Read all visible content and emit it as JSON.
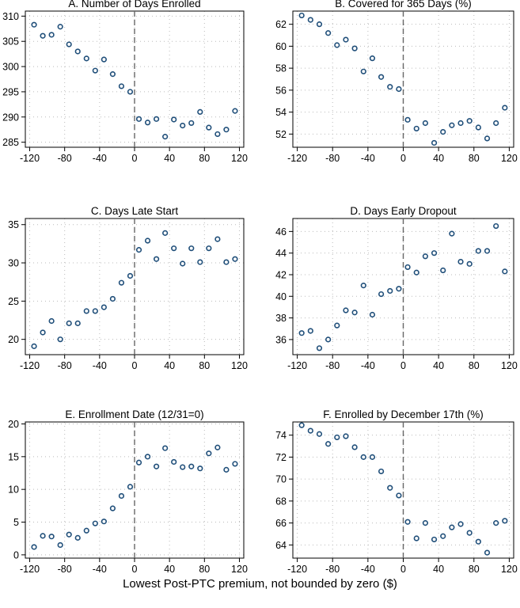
{
  "xlabel": "Lowest Post-PTC premium, not bounded by zero ($)",
  "style": {
    "marker_color": "#1f4e79",
    "cutoff_line_color": "#666666",
    "grid_color": "#bbbbbb"
  },
  "chart_data": [
    {
      "type": "scatter",
      "title": "A. Number of Days Enrolled",
      "xlim": [
        -125,
        125
      ],
      "ylim": [
        284,
        311
      ],
      "xticks": [
        -120,
        -80,
        -40,
        0,
        40,
        80,
        120
      ],
      "yticks": [
        285,
        290,
        295,
        300,
        305,
        310
      ],
      "cutoff": 0,
      "grid": true,
      "x": [
        -115,
        -105,
        -95,
        -85,
        -75,
        -65,
        -55,
        -45,
        -35,
        -25,
        -15,
        -5,
        5,
        15,
        25,
        35,
        45,
        55,
        65,
        75,
        85,
        95,
        105,
        115
      ],
      "y": [
        308.3,
        306.1,
        306.3,
        307.9,
        304.4,
        303.0,
        301.6,
        299.2,
        301.4,
        298.5,
        296.1,
        295.0,
        289.6,
        288.9,
        289.6,
        286.1,
        289.5,
        288.3,
        288.8,
        291.0,
        287.9,
        286.6,
        287.5,
        291.2
      ]
    },
    {
      "type": "scatter",
      "title": "B. Covered for 365 Days (%)",
      "xlim": [
        -125,
        125
      ],
      "ylim": [
        50.8,
        63.2
      ],
      "xticks": [
        -120,
        -80,
        -40,
        0,
        40,
        80,
        120
      ],
      "yticks": [
        52,
        54,
        56,
        58,
        60,
        62
      ],
      "cutoff": 0,
      "grid": true,
      "x": [
        -115,
        -105,
        -95,
        -85,
        -75,
        -65,
        -55,
        -45,
        -35,
        -25,
        -15,
        -5,
        5,
        15,
        25,
        35,
        45,
        55,
        65,
        75,
        85,
        95,
        105,
        115
      ],
      "y": [
        62.8,
        62.4,
        62.0,
        61.2,
        60.1,
        60.6,
        59.8,
        57.7,
        58.9,
        57.2,
        56.3,
        56.1,
        53.3,
        52.5,
        53.0,
        51.2,
        52.2,
        52.8,
        53.0,
        53.2,
        52.6,
        51.6,
        53.0,
        54.4
      ]
    },
    {
      "type": "scatter",
      "title": "C. Days Late Start",
      "xlim": [
        -125,
        125
      ],
      "ylim": [
        18,
        35.8
      ],
      "xticks": [
        -120,
        -80,
        -40,
        0,
        40,
        80,
        120
      ],
      "yticks": [
        20,
        25,
        30,
        35
      ],
      "cutoff": 0,
      "grid": true,
      "x": [
        -115,
        -105,
        -95,
        -85,
        -75,
        -65,
        -55,
        -45,
        -35,
        -25,
        -15,
        -5,
        5,
        15,
        25,
        35,
        45,
        55,
        65,
        75,
        85,
        95,
        105,
        115
      ],
      "y": [
        19.1,
        20.9,
        22.4,
        20.0,
        22.1,
        22.1,
        23.7,
        23.7,
        24.2,
        25.3,
        27.4,
        28.3,
        31.7,
        32.9,
        30.5,
        33.9,
        31.9,
        29.9,
        31.9,
        30.1,
        31.9,
        33.1,
        30.1,
        30.5
      ]
    },
    {
      "type": "scatter",
      "title": "D. Days Early Dropout",
      "xlim": [
        -125,
        125
      ],
      "ylim": [
        34.6,
        47.2
      ],
      "xticks": [
        -120,
        -80,
        -40,
        0,
        40,
        80,
        120
      ],
      "yticks": [
        36,
        38,
        40,
        42,
        44,
        46
      ],
      "cutoff": 0,
      "grid": true,
      "x": [
        -115,
        -105,
        -95,
        -85,
        -75,
        -65,
        -55,
        -45,
        -35,
        -25,
        -15,
        -5,
        5,
        15,
        25,
        35,
        45,
        55,
        65,
        75,
        85,
        95,
        105,
        115
      ],
      "y": [
        36.6,
        36.8,
        35.2,
        36.0,
        37.3,
        38.7,
        38.5,
        41.0,
        38.3,
        40.2,
        40.5,
        40.7,
        42.7,
        42.2,
        43.7,
        44.0,
        42.4,
        45.8,
        43.2,
        43.0,
        44.2,
        44.2,
        46.5,
        42.3
      ]
    },
    {
      "type": "scatter",
      "title": "E. Enrollment Date (12/31=0)",
      "xlim": [
        -125,
        125
      ],
      "ylim": [
        -0.5,
        20.3
      ],
      "xticks": [
        -120,
        -80,
        -40,
        0,
        40,
        80,
        120
      ],
      "yticks": [
        0,
        5,
        10,
        15,
        20
      ],
      "cutoff": 0,
      "grid": true,
      "x": [
        -115,
        -105,
        -95,
        -85,
        -75,
        -65,
        -55,
        -45,
        -35,
        -25,
        -15,
        -5,
        5,
        15,
        25,
        35,
        45,
        55,
        65,
        75,
        85,
        95,
        105,
        115
      ],
      "y": [
        1.2,
        2.9,
        2.8,
        1.5,
        3.1,
        2.6,
        3.7,
        4.8,
        5.1,
        7.1,
        9.0,
        10.4,
        14.1,
        15.0,
        13.5,
        16.3,
        14.2,
        13.4,
        13.5,
        13.2,
        15.5,
        16.4,
        13.0,
        13.9
      ]
    },
    {
      "type": "scatter",
      "title": "F. Enrolled by December 17th (%)",
      "xlim": [
        -125,
        125
      ],
      "ylim": [
        62.8,
        75.2
      ],
      "xticks": [
        -120,
        -80,
        -40,
        0,
        40,
        80,
        120
      ],
      "yticks": [
        64,
        66,
        68,
        70,
        72,
        74
      ],
      "cutoff": 0,
      "grid": true,
      "x": [
        -115,
        -105,
        -95,
        -85,
        -75,
        -65,
        -55,
        -45,
        -35,
        -25,
        -15,
        -5,
        5,
        15,
        25,
        35,
        45,
        55,
        65,
        75,
        85,
        95,
        105,
        115
      ],
      "y": [
        74.9,
        74.4,
        74.1,
        73.2,
        73.8,
        73.9,
        72.9,
        72.0,
        72.0,
        70.7,
        69.2,
        68.5,
        66.1,
        64.6,
        66.0,
        64.5,
        64.8,
        65.6,
        65.9,
        65.1,
        64.3,
        63.3,
        66.0,
        66.2
      ]
    }
  ]
}
